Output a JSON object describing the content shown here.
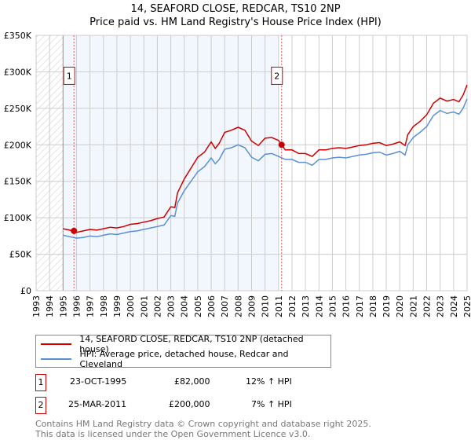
{
  "chart_data": {
    "type": "line",
    "title": "14, SEAFORD CLOSE, REDCAR, TS10 2NP",
    "subtitle": "Price paid vs. HM Land Registry's House Price Index (HPI)",
    "xlim": [
      1993,
      2025
    ],
    "ylim": [
      0,
      350000
    ],
    "x_ticks": [
      "1993",
      "1994",
      "1995",
      "1996",
      "1997",
      "1998",
      "1999",
      "2000",
      "2001",
      "2002",
      "2003",
      "2004",
      "2005",
      "2006",
      "2007",
      "2008",
      "2009",
      "2010",
      "2011",
      "2012",
      "2013",
      "2014",
      "2015",
      "2016",
      "2017",
      "2018",
      "2019",
      "2020",
      "2021",
      "2022",
      "2023",
      "2024",
      "2025"
    ],
    "y_ticks": [
      {
        "v": 0,
        "label": "£0"
      },
      {
        "v": 50000,
        "label": "£50K"
      },
      {
        "v": 100000,
        "label": "£100K"
      },
      {
        "v": 150000,
        "label": "£150K"
      },
      {
        "v": 200000,
        "label": "£200K"
      },
      {
        "v": 250000,
        "label": "£250K"
      },
      {
        "v": 300000,
        "label": "£300K"
      },
      {
        "v": 350000,
        "label": "£350K"
      }
    ],
    "grid": true,
    "x": [
      1995,
      1995.5,
      1996,
      1996.5,
      1997,
      1997.5,
      1998,
      1998.5,
      1999,
      1999.5,
      2000,
      2000.5,
      2001,
      2001.5,
      2002,
      2002.5,
      2003,
      2003.3,
      2003.5,
      2004,
      2004.5,
      2005,
      2005.5,
      2006,
      2006.3,
      2006.6,
      2007,
      2007.5,
      2008,
      2008.5,
      2009,
      2009.5,
      2010,
      2010.5,
      2011,
      2011.5,
      2012,
      2012.5,
      2013,
      2013.5,
      2014,
      2014.5,
      2015,
      2015.5,
      2016,
      2016.5,
      2017,
      2017.5,
      2018,
      2018.5,
      2019,
      2019.5,
      2020,
      2020.4,
      2020.6,
      2021,
      2021.5,
      2022,
      2022.5,
      2023,
      2023.5,
      2024,
      2024.4,
      2024.7,
      2025
    ],
    "series": [
      {
        "name": "14, SEAFORD CLOSE, REDCAR, TS10 2NP (detached house)",
        "color": "#cc0000",
        "values": [
          85000,
          83000,
          80000,
          82000,
          84000,
          83000,
          85000,
          87000,
          86000,
          88000,
          91000,
          92000,
          94000,
          96000,
          99000,
          101000,
          115000,
          114000,
          134000,
          153000,
          168000,
          183000,
          190000,
          204000,
          195000,
          202000,
          217000,
          220000,
          224000,
          220000,
          205000,
          199000,
          209000,
          210000,
          206000,
          193000,
          193000,
          188000,
          188000,
          184000,
          193000,
          193000,
          195000,
          196000,
          195000,
          197000,
          199000,
          200000,
          202000,
          203000,
          199000,
          201000,
          204000,
          199000,
          214000,
          225000,
          232000,
          241000,
          257000,
          264000,
          260000,
          262000,
          259000,
          268000,
          282000
        ]
      },
      {
        "name": "HPI: Average price, detached house, Redcar and Cleveland",
        "color": "#5b8fd4",
        "values": [
          76000,
          74000,
          72000,
          73000,
          75000,
          74000,
          76000,
          78000,
          77000,
          79000,
          81000,
          82000,
          84000,
          86000,
          88000,
          90000,
          103000,
          102000,
          120000,
          137000,
          150000,
          163000,
          170000,
          182000,
          174000,
          180000,
          194000,
          196000,
          200000,
          196000,
          183000,
          178000,
          187000,
          188000,
          184000,
          180000,
          180000,
          176000,
          176000,
          172000,
          180000,
          180000,
          182000,
          183000,
          182000,
          184000,
          186000,
          187000,
          189000,
          190000,
          186000,
          188000,
          191000,
          186000,
          200000,
          210000,
          217000,
          225000,
          240000,
          247000,
          243000,
          245000,
          242000,
          250000,
          263000
        ]
      }
    ],
    "sales": [
      {
        "id": "1",
        "x": 1995.81,
        "value": 82000
      },
      {
        "id": "2",
        "x": 2011.23,
        "value": 200000
      }
    ],
    "legend": "below"
  },
  "transactions": [
    {
      "id": "1",
      "date": "23-OCT-1995",
      "price": "£82,000",
      "hpi": "12% ↑ HPI"
    },
    {
      "id": "2",
      "date": "25-MAR-2011",
      "price": "£200,000",
      "hpi": "7% ↑ HPI"
    }
  ],
  "footer": [
    "Contains HM Land Registry data © Crown copyright and database right 2025.",
    "This data is licensed under the Open Government Licence v3.0."
  ]
}
